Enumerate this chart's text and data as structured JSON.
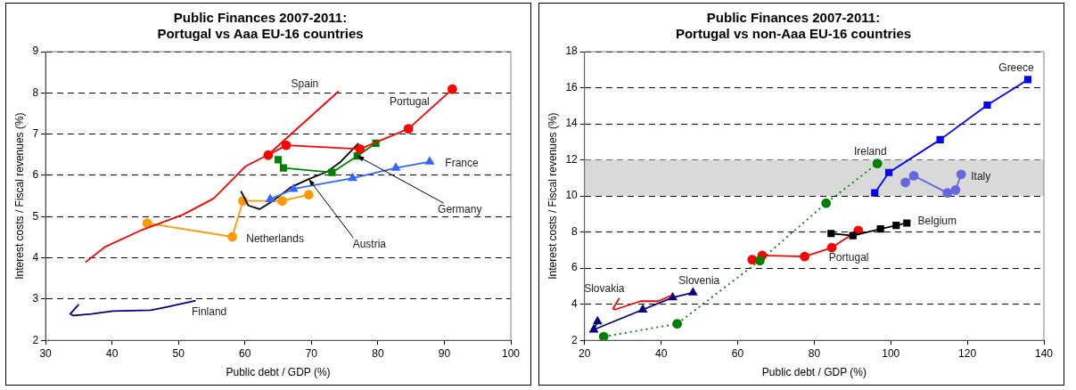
{
  "chart_data": [
    {
      "type": "line",
      "title": "Public Finances 2007-2011:\nPortugal vs Aaa EU-16 countries",
      "xlabel": "Public debt / GDP (%)",
      "ylabel": "Interest costs / Fiscal revenues (%)",
      "xlim": [
        30,
        100
      ],
      "xticks": [
        30,
        40,
        50,
        60,
        70,
        80,
        90,
        100
      ],
      "ylim": [
        2,
        9
      ],
      "yticks": [
        2,
        3,
        4,
        5,
        6,
        7,
        8,
        9
      ],
      "grid": "y",
      "legend": false,
      "series": [
        {
          "name": "Spain",
          "color": "#ff0000",
          "marker": "none",
          "x": [
            36.0,
            39.0,
            44.4,
            50.6,
            55.3,
            60.1,
            63.5,
            74.1
          ],
          "values": [
            3.89,
            4.27,
            4.67,
            5.04,
            5.44,
            6.22,
            6.5,
            8.04
          ]
        },
        {
          "name": "Portugal",
          "color": "#ff0000",
          "marker": "circle",
          "x": [
            63.5,
            66.2,
            77.3,
            84.6,
            91.2
          ],
          "values": [
            6.49,
            6.73,
            6.64,
            7.13,
            8.09
          ]
        },
        {
          "name": "France",
          "color": "#3366ff",
          "marker": "triangle",
          "x": [
            63.8,
            67.3,
            76.2,
            82.7,
            87.8
          ],
          "values": [
            5.42,
            5.67,
            5.93,
            6.18,
            6.33
          ]
        },
        {
          "name": "Germany",
          "color": "#008000",
          "marker": "square",
          "x": [
            65.0,
            65.8,
            73.1,
            76.9,
            79.7
          ],
          "values": [
            6.38,
            6.18,
            6.07,
            6.47,
            6.78
          ]
        },
        {
          "name": "Austria",
          "color": "#000000",
          "marker": "none",
          "x": [
            59.4,
            60.5,
            62.2,
            64.2,
            66.9,
            69.6,
            72.4,
            74.4,
            77.1
          ],
          "values": [
            5.62,
            5.27,
            5.18,
            5.38,
            5.71,
            5.91,
            6.09,
            6.33,
            6.78
          ]
        },
        {
          "name": "Netherlands",
          "color": "#ff9900",
          "marker": "circle",
          "x": [
            45.3,
            58.1,
            59.7,
            65.6,
            69.6
          ],
          "values": [
            4.84,
            4.51,
            5.38,
            5.38,
            5.53
          ]
        },
        {
          "name": "Finland",
          "color": "#000080",
          "marker": "none",
          "x": [
            35.0,
            33.7,
            34.2,
            36.9,
            40.1,
            45.8,
            47.4,
            52.6
          ],
          "values": [
            2.87,
            2.64,
            2.6,
            2.64,
            2.71,
            2.73,
            2.78,
            2.96
          ]
        }
      ]
    },
    {
      "type": "line",
      "title": "Public Finances 2007-2011:\nPortugal vs non-Aaa EU-16 countries",
      "xlabel": "Public debt / GDP (%)",
      "ylabel": "Interest costs / Fiscal revenues (%)",
      "xlim": [
        20,
        140
      ],
      "xticks": [
        20,
        40,
        60,
        80,
        100,
        120,
        140
      ],
      "ylim": [
        2,
        18
      ],
      "yticks": [
        2,
        4,
        6,
        8,
        10,
        12,
        14,
        16,
        18
      ],
      "grid": "y",
      "legend": false,
      "bands": [
        {
          "axis": "y",
          "from": 10,
          "to": 12,
          "color": "#d9d9d9"
        }
      ],
      "series": [
        {
          "name": "Greece",
          "color": "#0000ff",
          "marker": "square",
          "x": [
            95.8,
            99.5,
            112.9,
            125.2,
            135.8
          ],
          "values": [
            10.17,
            11.3,
            13.12,
            15.04,
            16.45
          ]
        },
        {
          "name": "Ireland",
          "color": "#008000",
          "marker": "circle",
          "line_style": "dotted",
          "x": [
            25.0,
            44.2,
            65.8,
            83.1,
            96.5
          ],
          "values": [
            2.2,
            2.92,
            6.42,
            9.6,
            11.8
          ]
        },
        {
          "name": "Italy",
          "color": "#6666dd",
          "marker": "circle",
          "x": [
            103.8,
            106.0,
            114.8,
            116.9,
            118.4
          ],
          "values": [
            10.75,
            11.12,
            10.17,
            10.33,
            11.2
          ]
        },
        {
          "name": "Belgium",
          "color": "#000000",
          "marker": "square",
          "x": [
            84.4,
            90.1,
            97.3,
            101.4,
            104.2
          ],
          "values": [
            7.92,
            7.8,
            8.17,
            8.37,
            8.5
          ]
        },
        {
          "name": "Portugal",
          "color": "#ff0000",
          "marker": "circle",
          "x": [
            63.8,
            66.4,
            77.5,
            84.6,
            91.5
          ],
          "values": [
            6.47,
            6.7,
            6.64,
            7.14,
            8.09
          ]
        },
        {
          "name": "Slovakia",
          "color": "#ff0000",
          "marker": "none",
          "x": [
            29.1,
            27.4,
            27.9,
            34.6,
            39.3,
            42.8
          ],
          "values": [
            4.34,
            3.75,
            3.7,
            4.17,
            4.17,
            4.5
          ]
        },
        {
          "name": "Slovenia",
          "color": "#000080",
          "marker": "triangle",
          "x": [
            23.4,
            22.4,
            35.2,
            43.0,
            48.3
          ],
          "values": [
            3.04,
            2.59,
            3.7,
            4.37,
            4.64
          ]
        }
      ]
    }
  ]
}
